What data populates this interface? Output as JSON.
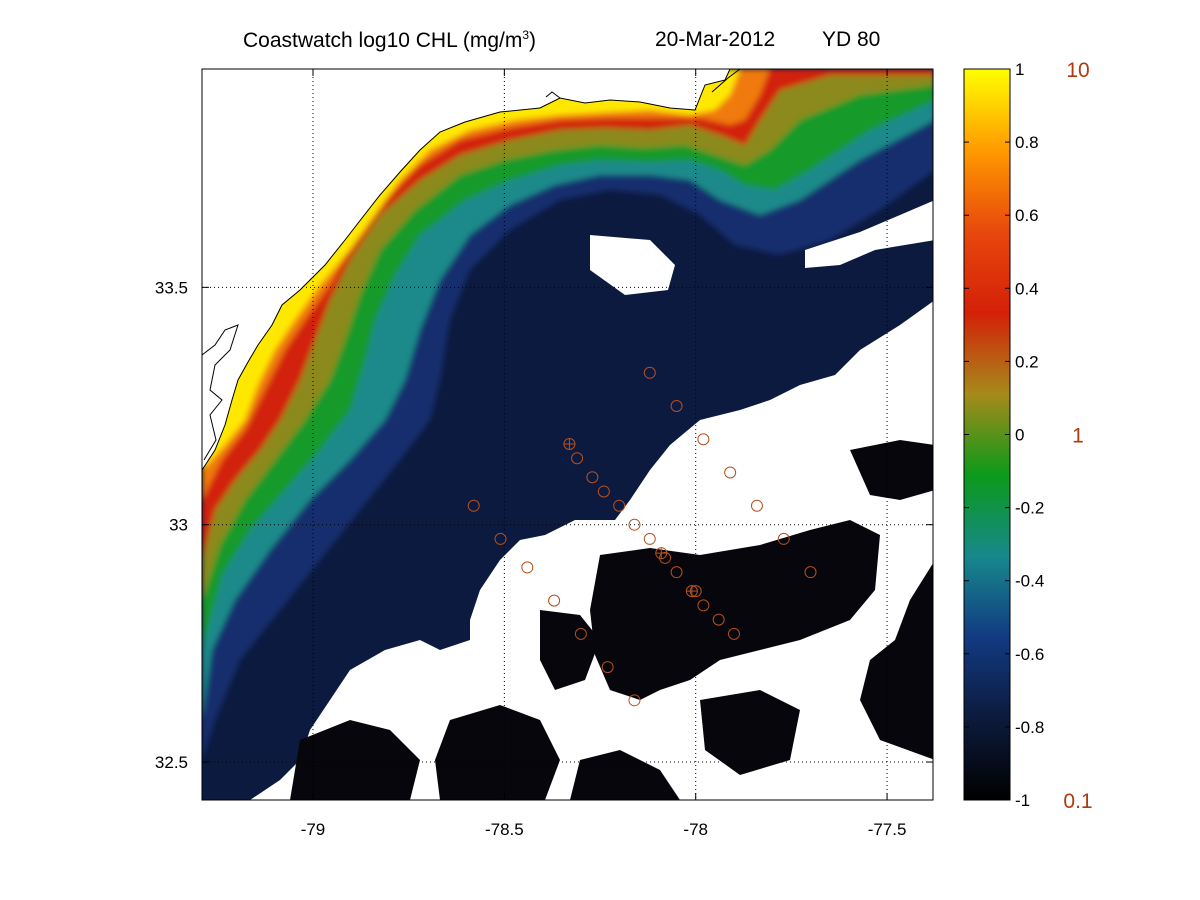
{
  "title": {
    "product": "Coastwatch  log10  CHL (mg/m",
    "exponent": "3",
    "close": ")",
    "date": "20-Mar-2012",
    "yearday": "YD 80"
  },
  "map": {
    "lon_range": [
      -79.29,
      -77.38
    ],
    "lat_range": [
      32.42,
      33.96
    ],
    "x_ticks": [
      {
        "value": -79,
        "label": "-79"
      },
      {
        "value": -78.5,
        "label": "-78.5"
      },
      {
        "value": -78,
        "label": "-78"
      },
      {
        "value": -77.5,
        "label": "-77.5"
      }
    ],
    "y_ticks": [
      {
        "value": 33.5,
        "label": "33.5"
      },
      {
        "value": 33,
        "label": "33"
      },
      {
        "value": 32.5,
        "label": "32.5"
      }
    ],
    "grid": "dotted",
    "land_color": "#ffffff",
    "no_data_color": "#ffffff",
    "station_marker_color": "#b4501e",
    "stations": [
      [
        -78.12,
        33.32
      ],
      [
        -78.05,
        33.25
      ],
      [
        -77.98,
        33.18
      ],
      [
        -77.91,
        33.11
      ],
      [
        -77.84,
        33.04
      ],
      [
        -77.77,
        32.97
      ],
      [
        -77.7,
        32.9
      ],
      [
        -78.33,
        33.17
      ],
      [
        -78.31,
        33.14
      ],
      [
        -78.27,
        33.1
      ],
      [
        -78.24,
        33.07
      ],
      [
        -78.2,
        33.04
      ],
      [
        -78.16,
        33.0
      ],
      [
        -78.12,
        32.97
      ],
      [
        -78.09,
        32.94
      ],
      [
        -78.08,
        32.93
      ],
      [
        -78.05,
        32.9
      ],
      [
        -78.01,
        32.86
      ],
      [
        -78.0,
        32.86
      ],
      [
        -77.98,
        32.83
      ],
      [
        -77.94,
        32.8
      ],
      [
        -77.9,
        32.77
      ],
      [
        -78.58,
        33.04
      ],
      [
        -78.51,
        32.97
      ],
      [
        -78.44,
        32.91
      ],
      [
        -78.37,
        32.84
      ],
      [
        -78.3,
        32.77
      ],
      [
        -78.23,
        32.7
      ],
      [
        -78.16,
        32.63
      ]
    ],
    "highlighted_stations": [
      [
        -78.33,
        33.17
      ],
      [
        -78.09,
        32.94
      ],
      [
        -78.01,
        32.86
      ]
    ]
  },
  "colorbar": {
    "range": [
      -1,
      1
    ],
    "colormap": [
      "#000000",
      "#0c1a3c",
      "#123a82",
      "#17888c",
      "#0b9a1a",
      "#a68a1a",
      "#d42008",
      "#e8480c",
      "#ff9a00",
      "#ffff00"
    ],
    "ticks": [
      {
        "value": 1,
        "label": "1"
      },
      {
        "value": 0.8,
        "label": "0.8"
      },
      {
        "value": 0.6,
        "label": "0.6"
      },
      {
        "value": 0.4,
        "label": "0.4"
      },
      {
        "value": 0.2,
        "label": "0.2"
      },
      {
        "value": 0,
        "label": "0"
      },
      {
        "value": -0.2,
        "label": "-0.2"
      },
      {
        "value": -0.4,
        "label": "-0.4"
      },
      {
        "value": -0.6,
        "label": "-0.6"
      },
      {
        "value": -0.8,
        "label": "-0.8"
      },
      {
        "value": -1,
        "label": "-1"
      }
    ],
    "linear_labels": [
      {
        "value": 1,
        "label": "10"
      },
      {
        "value": 0,
        "label": "1"
      },
      {
        "value": -1,
        "label": "0.1"
      }
    ],
    "linear_label_color": "#b03a10"
  }
}
